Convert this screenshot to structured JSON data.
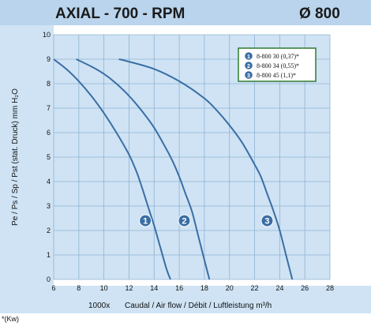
{
  "header": {
    "title": "AXIAL - 700 - RPM",
    "diameter": "Ø 800"
  },
  "footnote": "*(Kw)",
  "colors": {
    "background": "#cfe3f4",
    "header_band": "#b9d4ec",
    "grid": "#8fb3d3",
    "curve": "#3a6ea5",
    "marker": "#3a6ea5",
    "legend_border": "#2e7a2e"
  },
  "chart_data": {
    "type": "line",
    "xlabel": "Caudal / Air flow / Débit / Luftleistung m³/h",
    "xlabel_prefix": "1000x",
    "ylabel": "Pe / Ps / Sp / Pst (stat. Druck) mm H₂O",
    "xlim": [
      6,
      28
    ],
    "ylim": [
      0,
      10
    ],
    "x_ticks": [
      "6",
      "8",
      "10",
      "12",
      "14",
      "16",
      "18",
      "20",
      "22",
      "24",
      "26",
      "28"
    ],
    "y_ticks": [
      "0",
      "1",
      "2",
      "3",
      "4",
      "5",
      "6",
      "7",
      "8",
      "9",
      "10"
    ],
    "grid": true,
    "legend_position": "top-right",
    "series": [
      {
        "name": "8-800 30 (0,37)*",
        "marker": "1",
        "marker_at": [
          13.3,
          2.4
        ],
        "x": [
          6.0,
          7.0,
          8.0,
          9.0,
          10.0,
          11.0,
          12.0,
          12.6,
          13.0,
          13.5,
          14.0,
          14.5,
          15.0,
          15.3
        ],
        "y": [
          9.0,
          8.6,
          8.1,
          7.5,
          6.8,
          6.0,
          5.1,
          4.4,
          3.8,
          3.0,
          2.2,
          1.3,
          0.4,
          0.0
        ]
      },
      {
        "name": "8-800 34 (0,55)*",
        "marker": "2",
        "marker_at": [
          16.4,
          2.4
        ],
        "x": [
          7.8,
          9.0,
          10.0,
          11.0,
          12.0,
          13.0,
          14.0,
          15.0,
          15.5,
          16.0,
          16.5,
          17.0,
          17.5,
          18.0,
          18.4
        ],
        "y": [
          9.0,
          8.7,
          8.4,
          8.0,
          7.5,
          6.9,
          6.2,
          5.3,
          4.8,
          4.2,
          3.5,
          2.8,
          1.8,
          0.8,
          0.0
        ]
      },
      {
        "name": "8-800 45 (1,1)*",
        "marker": "3",
        "marker_at": [
          23.0,
          2.4
        ],
        "x": [
          11.2,
          12.0,
          14.0,
          16.0,
          18.0,
          19.0,
          20.0,
          21.0,
          22.0,
          22.5,
          23.0,
          23.5,
          24.0,
          24.5,
          25.0
        ],
        "y": [
          9.0,
          8.9,
          8.6,
          8.1,
          7.4,
          6.9,
          6.3,
          5.6,
          4.7,
          4.2,
          3.5,
          2.8,
          2.0,
          1.0,
          0.0
        ]
      }
    ]
  }
}
